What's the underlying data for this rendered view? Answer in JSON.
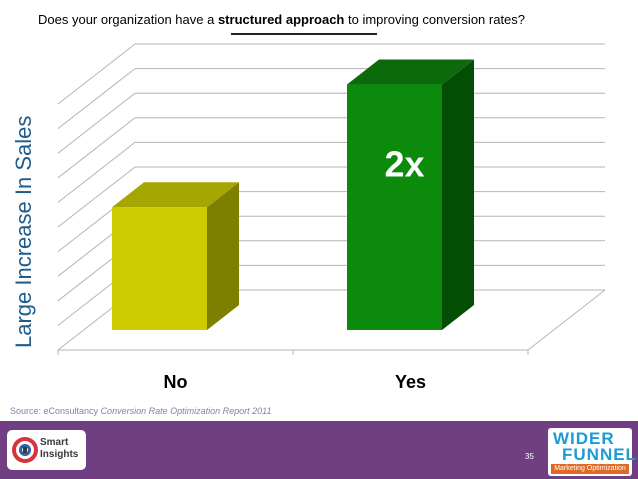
{
  "question": {
    "prefix": "Does your organization have a ",
    "emphasis": "structured approach",
    "suffix": " to improving conversion rates?"
  },
  "source": {
    "prefix": "Source: eConsultancy ",
    "title": "Conversion Rate Optimization Report 2011"
  },
  "footer": {
    "page_number": "35",
    "logo_left": {
      "line1": "Smart",
      "line2": "Insights"
    },
    "logo_right": {
      "line1": "WIDER",
      "line2": "FUNNEL",
      "tagline": "Marketing Optimization"
    }
  },
  "colors": {
    "no_front": "#cccc00",
    "no_top": "#a6a600",
    "no_side": "#7e7e00",
    "yes_front": "#0b8a0b",
    "yes_top": "#0c6a0c",
    "yes_side": "#044d04",
    "axis_label": "#1f5c8b",
    "footer": "#6f3f82",
    "source_text": "#8c7cab"
  },
  "chart_data": {
    "type": "bar",
    "style": "3d",
    "title": "",
    "xlabel": "",
    "ylabel": "Large Increase In Sales",
    "categories": [
      "No",
      "Yes"
    ],
    "values": [
      1,
      2
    ],
    "ylim": [
      0,
      2.2
    ],
    "grid": true,
    "data_labels": [
      "",
      "2x"
    ],
    "legend": "none"
  }
}
